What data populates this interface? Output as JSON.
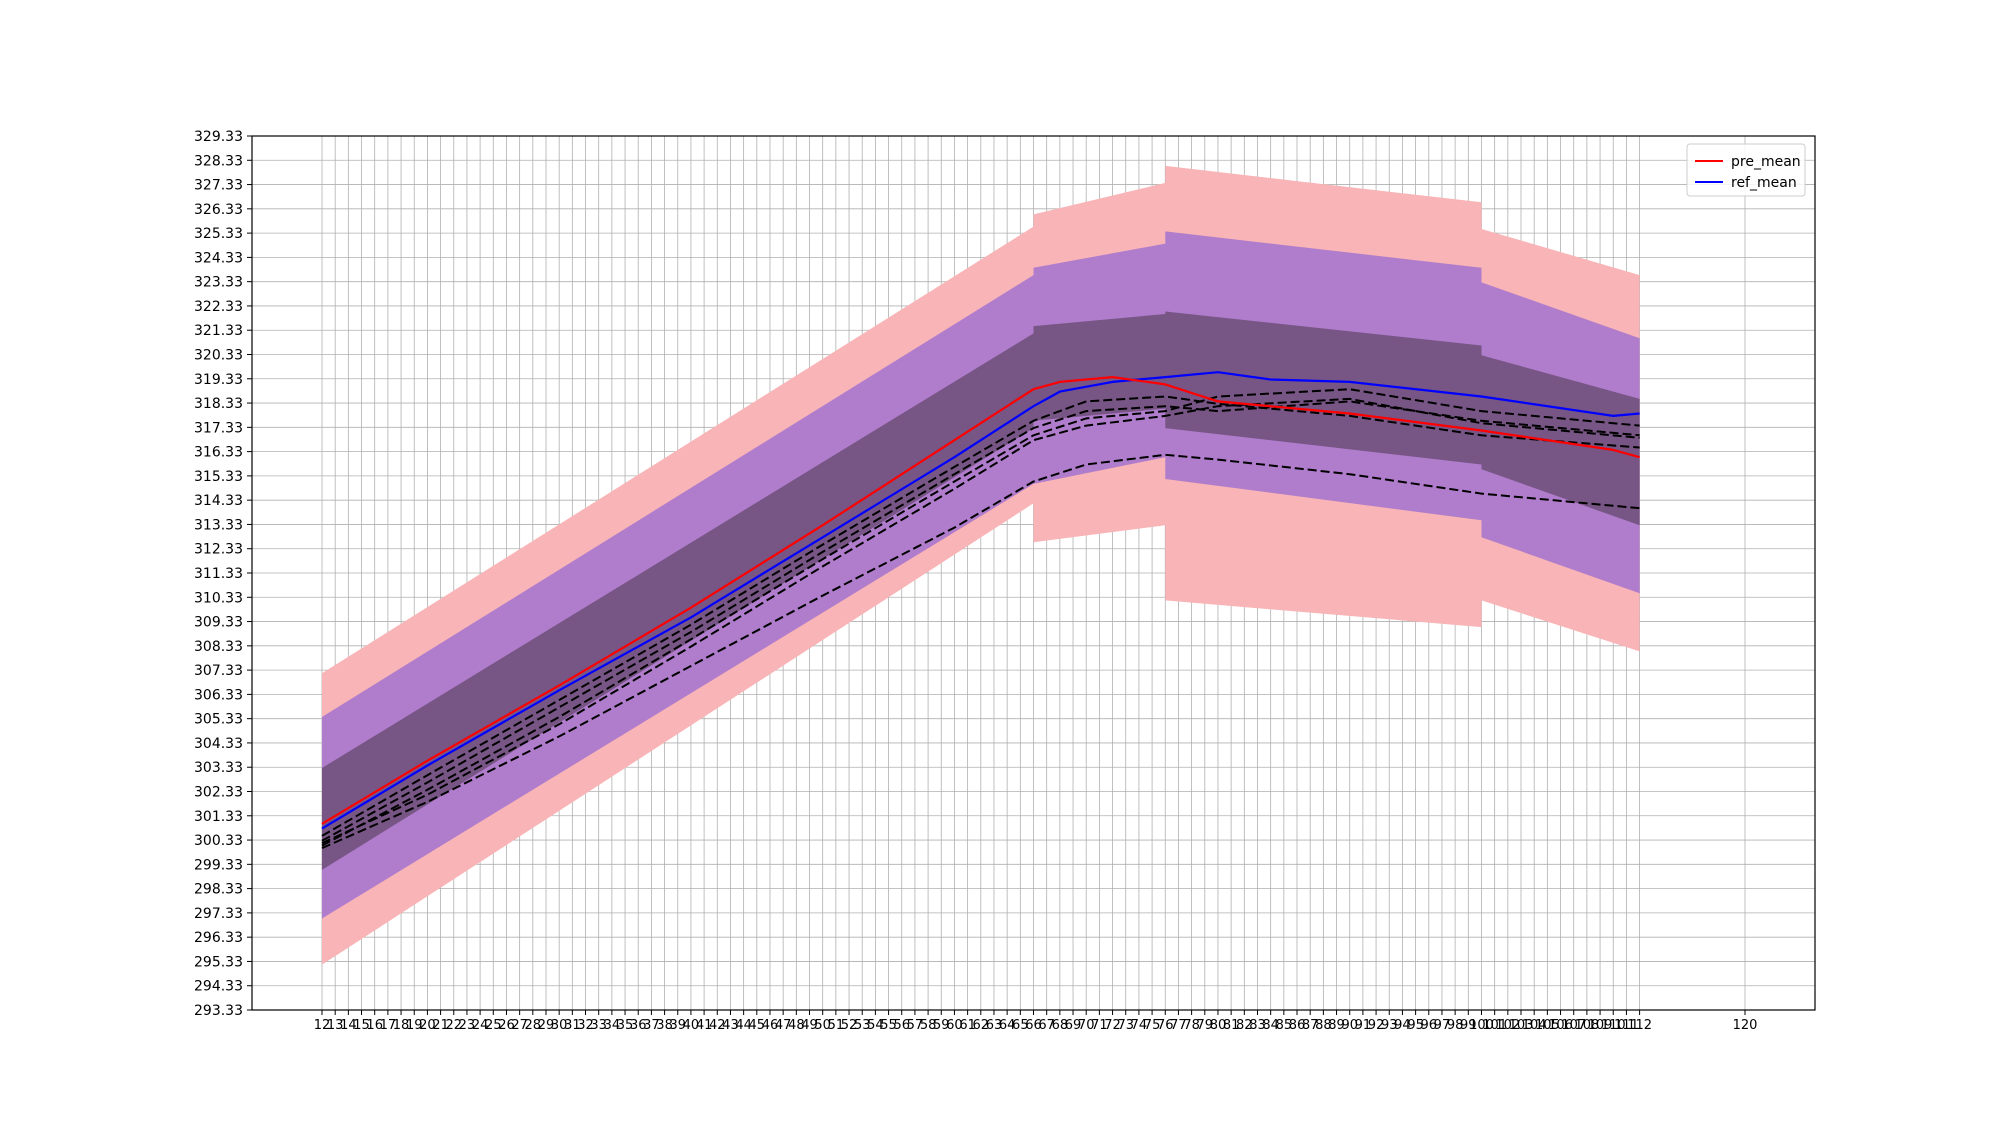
{
  "chart_data": {
    "type": "line",
    "title": "",
    "xlabel": "",
    "ylabel": "",
    "xlim": [
      12,
      120
    ],
    "ylim": [
      293.33,
      329.33
    ],
    "grid": true,
    "legend_placement": "top-right",
    "x_ticks": [
      12,
      13,
      14,
      15,
      16,
      17,
      18,
      19,
      20,
      21,
      22,
      23,
      24,
      25,
      26,
      27,
      28,
      29,
      30,
      31,
      32,
      33,
      34,
      35,
      36,
      37,
      38,
      39,
      40,
      41,
      42,
      43,
      44,
      45,
      46,
      47,
      48,
      49,
      50,
      51,
      52,
      53,
      54,
      55,
      56,
      57,
      58,
      59,
      60,
      61,
      62,
      63,
      64,
      65,
      66,
      67,
      68,
      69,
      70,
      71,
      72,
      73,
      74,
      75,
      76,
      77,
      78,
      79,
      80,
      81,
      82,
      83,
      84,
      85,
      86,
      87,
      88,
      89,
      90,
      91,
      92,
      93,
      94,
      95,
      96,
      97,
      98,
      99,
      100,
      101,
      102,
      103,
      104,
      105,
      106,
      107,
      108,
      109,
      110,
      111,
      112,
      120
    ],
    "y_ticks": [
      "293.33",
      "294.33",
      "295.33",
      "296.33",
      "297.33",
      "298.33",
      "299.33",
      "300.33",
      "301.33",
      "302.33",
      "303.33",
      "304.33",
      "305.33",
      "306.33",
      "307.33",
      "308.33",
      "309.33",
      "310.33",
      "311.33",
      "312.33",
      "313.33",
      "314.33",
      "315.33",
      "316.33",
      "317.33",
      "318.33",
      "319.33",
      "320.33",
      "321.33",
      "322.33",
      "323.33",
      "324.33",
      "325.33",
      "326.33",
      "327.33",
      "328.33",
      "329.33"
    ],
    "legend": [
      {
        "name": "pre_mean",
        "color": "#ff0000"
      },
      {
        "name": "ref_mean",
        "color": "#0000ff"
      }
    ],
    "colors": {
      "band_outer": "#f8b4b6",
      "band_middle": "#b07ccc",
      "band_inner": "#775585",
      "samples": "#000000"
    },
    "pre_mean": {
      "x": [
        12,
        20,
        30,
        40,
        50,
        60,
        66,
        68,
        72,
        76,
        80,
        90,
        100,
        110,
        112
      ],
      "y": [
        301.0,
        303.6,
        306.7,
        309.9,
        313.3,
        316.8,
        318.9,
        319.2,
        319.4,
        319.1,
        318.4,
        317.9,
        317.2,
        316.4,
        316.1
      ]
    },
    "ref_mean": {
      "x": [
        12,
        20,
        30,
        40,
        50,
        60,
        66,
        68,
        72,
        76,
        80,
        84,
        90,
        100,
        110,
        112
      ],
      "y": [
        300.8,
        303.4,
        306.5,
        309.5,
        312.8,
        316.1,
        318.2,
        318.8,
        319.2,
        319.4,
        319.6,
        319.3,
        319.2,
        318.6,
        317.8,
        317.9
      ]
    },
    "samples": [
      {
        "x": [
          12,
          20,
          30,
          40,
          50,
          60,
          66,
          70,
          76,
          80,
          90,
          100,
          112
        ],
        "y": [
          300.5,
          303.0,
          306.1,
          309.2,
          312.5,
          315.7,
          317.6,
          318.4,
          318.6,
          318.3,
          317.8,
          317.0,
          316.5
        ]
      },
      {
        "x": [
          12,
          20,
          30,
          40,
          50,
          60,
          66,
          70,
          76,
          80,
          90,
          100,
          112
        ],
        "y": [
          300.3,
          302.7,
          305.8,
          308.9,
          312.2,
          315.4,
          317.3,
          318.0,
          318.2,
          318.0,
          318.4,
          317.6,
          317.0
        ]
      },
      {
        "x": [
          12,
          20,
          30,
          40,
          50,
          60,
          66,
          70,
          76,
          80,
          90,
          100,
          112
        ],
        "y": [
          300.1,
          302.4,
          305.4,
          308.6,
          311.9,
          315.1,
          317.0,
          317.7,
          318.0,
          318.6,
          318.9,
          318.0,
          317.4
        ]
      },
      {
        "x": [
          12,
          20,
          30,
          40,
          50,
          60,
          66,
          70,
          76,
          80,
          90,
          100,
          112
        ],
        "y": [
          300.2,
          302.2,
          305.1,
          308.3,
          311.6,
          314.8,
          316.8,
          317.4,
          317.8,
          318.2,
          318.5,
          317.5,
          316.9
        ]
      },
      {
        "x": [
          12,
          20,
          30,
          40,
          50,
          60,
          66,
          70,
          76,
          80,
          90,
          100,
          112
        ],
        "y": [
          300.0,
          301.9,
          304.6,
          307.5,
          310.4,
          313.2,
          315.1,
          315.8,
          316.2,
          316.0,
          315.4,
          314.6,
          314.0
        ]
      }
    ],
    "bands": {
      "x": [
        12,
        66,
        66,
        76,
        76,
        100,
        100,
        112
      ],
      "outer_upper": [
        307.2,
        325.6,
        326.1,
        327.4,
        328.1,
        326.6,
        325.5,
        323.6
      ],
      "outer_lower": [
        295.2,
        314.2,
        312.6,
        313.3,
        310.2,
        309.1,
        310.2,
        308.1
      ],
      "middle_upper": [
        305.4,
        323.6,
        323.9,
        324.9,
        325.4,
        323.9,
        323.3,
        321.0
      ],
      "middle_lower": [
        297.1,
        315.0,
        315.0,
        316.1,
        315.2,
        313.5,
        312.8,
        310.5
      ],
      "inner_upper": [
        303.3,
        321.2,
        321.5,
        322.0,
        322.1,
        320.7,
        320.3,
        318.5
      ],
      "inner_lower": [
        299.1,
        317.3,
        317.6,
        318.1,
        317.3,
        315.8,
        315.6,
        313.3
      ]
    }
  }
}
